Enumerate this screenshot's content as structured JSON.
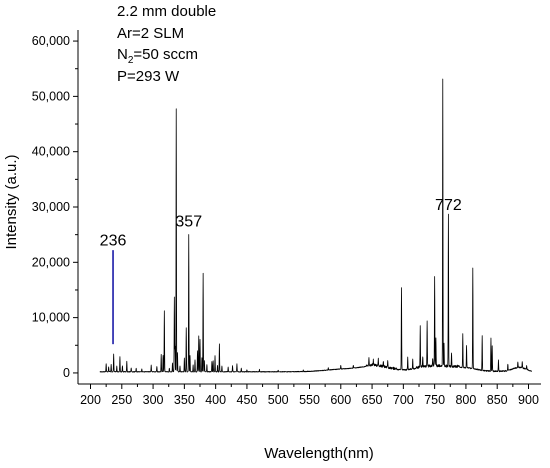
{
  "chart_data": {
    "type": "line",
    "title": "",
    "xlabel": "Wavelength(nm)",
    "ylabel": "Intensity (a.u.)",
    "xlim": [
      180,
      920
    ],
    "ylim": [
      -2000,
      62000
    ],
    "x_ticks": [
      200,
      250,
      300,
      350,
      400,
      450,
      500,
      550,
      600,
      650,
      700,
      750,
      800,
      850,
      900
    ],
    "x_tick_labels": [
      "200",
      "250",
      "300",
      "350",
      "400",
      "450",
      "500",
      "550",
      "600",
      "650",
      "700",
      "750",
      "800",
      "850",
      "900"
    ],
    "y_ticks": [
      0,
      10000,
      20000,
      30000,
      40000,
      50000,
      60000
    ],
    "y_tick_labels": [
      "0",
      "10,000",
      "20,000",
      "30,000",
      "40,000",
      "50,000",
      "60,000"
    ],
    "grid": false,
    "legend": "none",
    "line_color": "#000000",
    "annotation_line_color": "#1a1aa8",
    "annotation_line": {
      "x": 236,
      "y_from": 5200,
      "y_to": 22200
    },
    "conditions": {
      "line1": "2.2 mm double",
      "line2": "Ar=2 SLM",
      "line3_main": "N",
      "line3_sub": "2",
      "line3_rest": "=50 sccm",
      "line4": "P=293 W"
    },
    "peak_labels": [
      {
        "text": "236",
        "x": 236,
        "y": 23000
      },
      {
        "text": "357",
        "x": 357,
        "y": 26500
      },
      {
        "text": "772",
        "x": 772,
        "y": 29500
      }
    ],
    "peaks": [
      {
        "x": 225,
        "y": 1500
      },
      {
        "x": 229,
        "y": 900
      },
      {
        "x": 233,
        "y": 1300
      },
      {
        "x": 237,
        "y": 3200
      },
      {
        "x": 242,
        "y": 1000
      },
      {
        "x": 247,
        "y": 2800
      },
      {
        "x": 251,
        "y": 1100
      },
      {
        "x": 258,
        "y": 1900
      },
      {
        "x": 265,
        "y": 700
      },
      {
        "x": 273,
        "y": 600
      },
      {
        "x": 282,
        "y": 500
      },
      {
        "x": 297,
        "y": 1200
      },
      {
        "x": 306,
        "y": 1000
      },
      {
        "x": 313,
        "y": 3200
      },
      {
        "x": 316,
        "y": 3000
      },
      {
        "x": 318,
        "y": 11000
      },
      {
        "x": 326,
        "y": 700
      },
      {
        "x": 331,
        "y": 1600
      },
      {
        "x": 334,
        "y": 13500
      },
      {
        "x": 335,
        "y": 4500
      },
      {
        "x": 337,
        "y": 47500
      },
      {
        "x": 339,
        "y": 3500
      },
      {
        "x": 343,
        "y": 1000
      },
      {
        "x": 350,
        "y": 2500
      },
      {
        "x": 353,
        "y": 8000
      },
      {
        "x": 357,
        "y": 24800
      },
      {
        "x": 359,
        "y": 3000
      },
      {
        "x": 364,
        "y": 1200
      },
      {
        "x": 367,
        "y": 2200
      },
      {
        "x": 371,
        "y": 3800
      },
      {
        "x": 373,
        "y": 6500
      },
      {
        "x": 375,
        "y": 5800
      },
      {
        "x": 378,
        "y": 2500
      },
      {
        "x": 380,
        "y": 17800
      },
      {
        "x": 382,
        "y": 2000
      },
      {
        "x": 386,
        "y": 1300
      },
      {
        "x": 394,
        "y": 1800
      },
      {
        "x": 396,
        "y": 2000
      },
      {
        "x": 399,
        "y": 2900
      },
      {
        "x": 403,
        "y": 1200
      },
      {
        "x": 406,
        "y": 5000
      },
      {
        "x": 410,
        "y": 1000
      },
      {
        "x": 420,
        "y": 800
      },
      {
        "x": 427,
        "y": 1100
      },
      {
        "x": 434,
        "y": 1400
      },
      {
        "x": 441,
        "y": 600
      },
      {
        "x": 450,
        "y": 400
      },
      {
        "x": 470,
        "y": 400
      },
      {
        "x": 500,
        "y": 300
      },
      {
        "x": 540,
        "y": 300
      },
      {
        "x": 580,
        "y": 400
      },
      {
        "x": 600,
        "y": 700
      },
      {
        "x": 620,
        "y": 500
      },
      {
        "x": 645,
        "y": 1200
      },
      {
        "x": 652,
        "y": 1000
      },
      {
        "x": 660,
        "y": 1200
      },
      {
        "x": 668,
        "y": 1100
      },
      {
        "x": 675,
        "y": 1300
      },
      {
        "x": 697,
        "y": 14800
      },
      {
        "x": 707,
        "y": 2300
      },
      {
        "x": 715,
        "y": 1800
      },
      {
        "x": 727,
        "y": 7500
      },
      {
        "x": 731,
        "y": 1900
      },
      {
        "x": 738,
        "y": 8200
      },
      {
        "x": 747,
        "y": 1500
      },
      {
        "x": 750,
        "y": 16200
      },
      {
        "x": 752,
        "y": 5000
      },
      {
        "x": 763,
        "y": 51800
      },
      {
        "x": 765,
        "y": 4000
      },
      {
        "x": 772,
        "y": 27500
      },
      {
        "x": 777,
        "y": 2500
      },
      {
        "x": 795,
        "y": 6000
      },
      {
        "x": 801,
        "y": 4000
      },
      {
        "x": 811,
        "y": 18200
      },
      {
        "x": 826,
        "y": 6300
      },
      {
        "x": 840,
        "y": 6000
      },
      {
        "x": 842,
        "y": 4500
      },
      {
        "x": 852,
        "y": 2000
      },
      {
        "x": 867,
        "y": 1200
      },
      {
        "x": 883,
        "y": 1000
      },
      {
        "x": 890,
        "y": 1100
      },
      {
        "x": 897,
        "y": 700
      }
    ],
    "baseline_humps": [
      {
        "x": 610,
        "width": 45,
        "y": 500
      },
      {
        "x": 655,
        "width": 30,
        "y": 800
      },
      {
        "x": 750,
        "width": 40,
        "y": 900
      },
      {
        "x": 800,
        "width": 25,
        "y": 500
      },
      {
        "x": 885,
        "width": 15,
        "y": 700
      }
    ]
  }
}
